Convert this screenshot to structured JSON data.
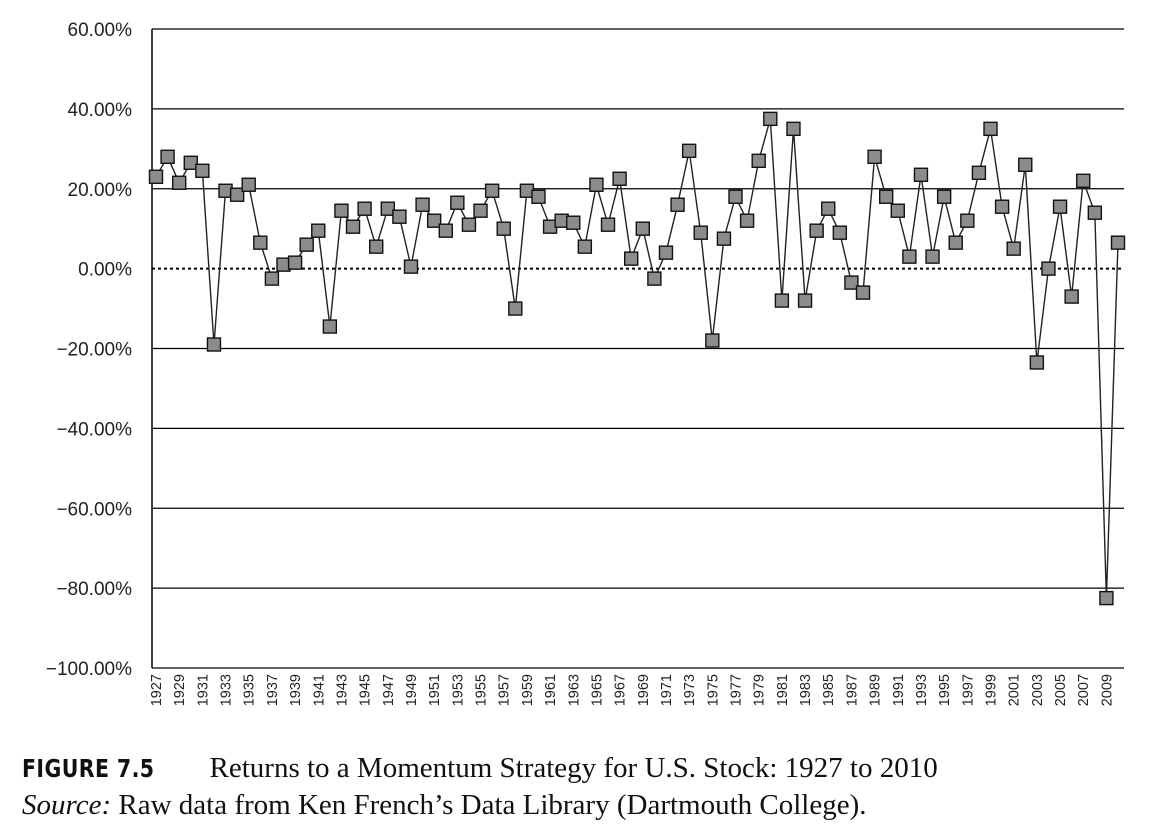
{
  "chart_data": {
    "type": "line",
    "title": "",
    "xlabel": "",
    "ylabel": "",
    "ylim": [
      -100,
      60
    ],
    "y_ticks": [
      "60.00%",
      "40.00%",
      "20.00%",
      "0.00%",
      "−20.00%",
      "−40.00%",
      "−60.00%",
      "−80.00%",
      "−100.00%"
    ],
    "y_tick_values": [
      60,
      40,
      20,
      0,
      -20,
      -40,
      -60,
      -80,
      -100
    ],
    "x_tick_labels": [
      "1927",
      "1929",
      "1931",
      "1933",
      "1935",
      "1937",
      "1939",
      "1941",
      "1943",
      "1945",
      "1947",
      "1949",
      "1951",
      "1953",
      "1955",
      "1957",
      "1959",
      "1961",
      "1963",
      "1965",
      "1967",
      "1969",
      "1971",
      "1973",
      "1975",
      "1977",
      "1979",
      "1981",
      "1983",
      "1985",
      "1987",
      "1989",
      "1991",
      "1993",
      "1995",
      "1997",
      "1999",
      "2001",
      "2003",
      "2005",
      "2007",
      "2009"
    ],
    "x": [
      1927,
      1928,
      1929,
      1930,
      1931,
      1932,
      1933,
      1934,
      1935,
      1936,
      1937,
      1938,
      1939,
      1940,
      1941,
      1942,
      1943,
      1944,
      1945,
      1946,
      1947,
      1948,
      1949,
      1950,
      1951,
      1952,
      1953,
      1954,
      1955,
      1956,
      1957,
      1958,
      1959,
      1960,
      1961,
      1962,
      1963,
      1964,
      1965,
      1966,
      1967,
      1968,
      1969,
      1970,
      1971,
      1972,
      1973,
      1974,
      1975,
      1976,
      1977,
      1978,
      1979,
      1980,
      1981,
      1982,
      1983,
      1984,
      1985,
      1986,
      1987,
      1988,
      1989,
      1990,
      1991,
      1992,
      1993,
      1994,
      1995,
      1996,
      1997,
      1998,
      1999,
      2000,
      2001,
      2002,
      2003,
      2004,
      2005,
      2006,
      2007,
      2008,
      2009,
      2010
    ],
    "series": [
      {
        "values": [
          23,
          28,
          21.5,
          26.5,
          24.5,
          -19,
          19.5,
          18.5,
          21,
          6.5,
          -2.5,
          1,
          1.5,
          6,
          9.5,
          -14.5,
          14.5,
          10.5,
          15,
          5.5,
          15,
          13,
          0.5,
          16,
          12,
          9.5,
          16.5,
          11,
          14.5,
          19.5,
          10,
          -10,
          19.5,
          18,
          10.5,
          12,
          11.5,
          5.5,
          21,
          11,
          22.5,
          2.5,
          10,
          -2.5,
          4,
          16,
          29.5,
          9,
          -18,
          7.5,
          18,
          12,
          27,
          37.5,
          -8,
          35,
          -8,
          9.5,
          15,
          9,
          -3.5,
          -6,
          28,
          18,
          14.5,
          3,
          23.5,
          3,
          18,
          6.5,
          12,
          24,
          35,
          15.5,
          5,
          26,
          -23.5,
          0,
          15.5,
          -7,
          22,
          14,
          -82.5,
          6.5
        ]
      }
    ],
    "grid": true,
    "legend": "none",
    "marker": "square",
    "marker_color": "#8c8c8c",
    "line_color": "#222222"
  },
  "caption": {
    "figure_label": "FIGURE 7.5",
    "title": "Returns to a Momentum Strategy for U.S. Stock: 1927 to 2010",
    "source_label": "Source:",
    "source_text": " Raw data from Ken French’s Data Library (Dartmouth College)."
  }
}
